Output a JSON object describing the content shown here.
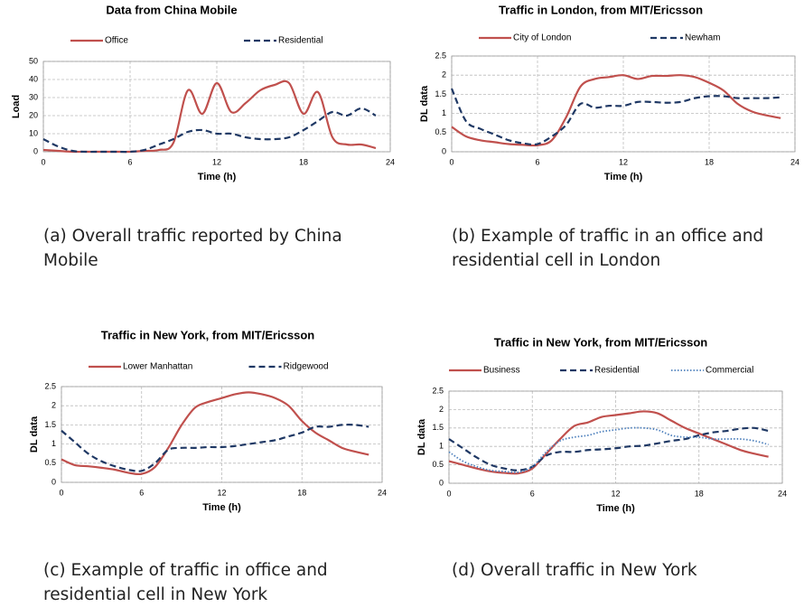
{
  "chart_data": [
    {
      "type": "line",
      "title": "Data from China Mobile",
      "xlabel": "Time (h)",
      "ylabel": "Load",
      "caption": "(a) Overall traffic reported by China Mobile",
      "x": [
        0,
        1,
        2,
        3,
        4,
        5,
        6,
        7,
        8,
        9,
        10,
        11,
        12,
        13,
        14,
        15,
        16,
        17,
        18,
        19,
        20,
        21,
        22,
        23
      ],
      "xlim": [
        0,
        24
      ],
      "xticks": [
        0,
        6,
        12,
        18,
        24
      ],
      "ylim": [
        0,
        50
      ],
      "yticks": [
        0,
        10,
        20,
        30,
        40,
        50
      ],
      "grid": true,
      "series": [
        {
          "name": "Office",
          "color": "#c0504d",
          "style": "solid",
          "values": [
            1,
            0.5,
            0,
            0,
            0,
            0,
            0,
            0.5,
            1,
            5,
            34,
            21,
            38,
            22,
            27,
            34,
            37,
            38,
            21,
            33,
            8,
            4,
            4,
            2
          ]
        },
        {
          "name": "Residential",
          "color": "#1f3864",
          "style": "dashed",
          "values": [
            7,
            3,
            0.5,
            0,
            0,
            0,
            0,
            1,
            4,
            7,
            11,
            12,
            10,
            10,
            8,
            7,
            7,
            8,
            12,
            17,
            22,
            20,
            24,
            20
          ]
        }
      ]
    },
    {
      "type": "line",
      "title": "Traffic in London, from MIT/Ericsson",
      "xlabel": "Time (h)",
      "ylabel": "DL data",
      "caption": "(b) Example of traffic in an office and residential cell in London",
      "x": [
        0,
        1,
        2,
        3,
        4,
        5,
        6,
        7,
        8,
        9,
        10,
        11,
        12,
        13,
        14,
        15,
        16,
        17,
        18,
        19,
        20,
        21,
        22,
        23
      ],
      "xlim": [
        0,
        24
      ],
      "xticks": [
        0,
        6,
        12,
        18,
        24
      ],
      "ylim": [
        0,
        2.5
      ],
      "yticks": [
        0,
        0.5,
        1,
        1.5,
        2,
        2.5
      ],
      "grid": true,
      "series": [
        {
          "name": "City of London",
          "color": "#c0504d",
          "style": "solid",
          "values": [
            0.65,
            0.4,
            0.3,
            0.25,
            0.2,
            0.18,
            0.17,
            0.3,
            0.9,
            1.7,
            1.9,
            1.95,
            2,
            1.9,
            1.98,
            1.98,
            2,
            1.95,
            1.8,
            1.6,
            1.25,
            1.05,
            0.95,
            0.88
          ]
        },
        {
          "name": "Newham",
          "color": "#1f3864",
          "style": "dashed",
          "values": [
            1.65,
            0.8,
            0.6,
            0.45,
            0.3,
            0.22,
            0.2,
            0.4,
            0.7,
            1.25,
            1.15,
            1.2,
            1.2,
            1.3,
            1.3,
            1.28,
            1.3,
            1.4,
            1.45,
            1.45,
            1.4,
            1.4,
            1.4,
            1.42
          ]
        }
      ]
    },
    {
      "type": "line",
      "title": "Traffic in New York, from MIT/Ericsson",
      "xlabel": "Time (h)",
      "ylabel": "DL data",
      "caption": "(c) Example of traffic in office and residential cell in New York",
      "x": [
        0,
        1,
        2,
        3,
        4,
        5,
        6,
        7,
        8,
        9,
        10,
        11,
        12,
        13,
        14,
        15,
        16,
        17,
        18,
        19,
        20,
        21,
        22,
        23
      ],
      "xlim": [
        0,
        24
      ],
      "xticks": [
        0,
        6,
        12,
        18,
        24
      ],
      "ylim": [
        0,
        2.5
      ],
      "yticks": [
        0,
        0.5,
        1,
        1.5,
        2,
        2.5
      ],
      "grid": true,
      "series": [
        {
          "name": "Lower Manhattan",
          "color": "#c0504d",
          "style": "solid",
          "values": [
            0.6,
            0.45,
            0.42,
            0.38,
            0.33,
            0.25,
            0.22,
            0.4,
            0.9,
            1.5,
            1.95,
            2.1,
            2.2,
            2.3,
            2.35,
            2.3,
            2.2,
            2.0,
            1.6,
            1.3,
            1.1,
            0.9,
            0.8,
            0.72
          ]
        },
        {
          "name": "Ridgewood",
          "color": "#1f3864",
          "style": "dashed",
          "values": [
            1.35,
            1.05,
            0.75,
            0.55,
            0.42,
            0.33,
            0.3,
            0.5,
            0.85,
            0.9,
            0.9,
            0.92,
            0.92,
            0.95,
            1.0,
            1.05,
            1.1,
            1.2,
            1.3,
            1.45,
            1.45,
            1.5,
            1.5,
            1.45
          ]
        }
      ]
    },
    {
      "type": "line",
      "title": "Traffic in New York, from MIT/Ericsson",
      "xlabel": "Time (h)",
      "ylabel": "DL data",
      "caption": "(d) Overall traffic in New York",
      "x": [
        0,
        1,
        2,
        3,
        4,
        5,
        6,
        7,
        8,
        9,
        10,
        11,
        12,
        13,
        14,
        15,
        16,
        17,
        18,
        19,
        20,
        21,
        22,
        23
      ],
      "xlim": [
        0,
        24
      ],
      "xticks": [
        0,
        6,
        12,
        18,
        24
      ],
      "ylim": [
        0,
        2.5
      ],
      "yticks": [
        0,
        0.5,
        1,
        1.5,
        2,
        2.5
      ],
      "grid": true,
      "series": [
        {
          "name": "Business",
          "color": "#c0504d",
          "style": "solid",
          "values": [
            0.6,
            0.5,
            0.4,
            0.32,
            0.28,
            0.27,
            0.4,
            0.8,
            1.2,
            1.55,
            1.65,
            1.8,
            1.85,
            1.9,
            1.95,
            1.9,
            1.7,
            1.5,
            1.35,
            1.2,
            1.05,
            0.9,
            0.8,
            0.72
          ]
        },
        {
          "name": "Residential",
          "color": "#1f3864",
          "style": "dashed",
          "values": [
            1.2,
            0.95,
            0.7,
            0.5,
            0.4,
            0.35,
            0.45,
            0.75,
            0.85,
            0.85,
            0.9,
            0.92,
            0.95,
            1.0,
            1.02,
            1.08,
            1.15,
            1.2,
            1.3,
            1.38,
            1.42,
            1.48,
            1.5,
            1.42
          ]
        },
        {
          "name": "Commercial",
          "color": "#4f81bd",
          "style": "dotted",
          "values": [
            0.85,
            0.6,
            0.45,
            0.35,
            0.32,
            0.3,
            0.45,
            0.85,
            1.15,
            1.25,
            1.3,
            1.4,
            1.45,
            1.5,
            1.5,
            1.45,
            1.3,
            1.25,
            1.25,
            1.2,
            1.2,
            1.2,
            1.15,
            1.05
          ]
        }
      ]
    }
  ]
}
